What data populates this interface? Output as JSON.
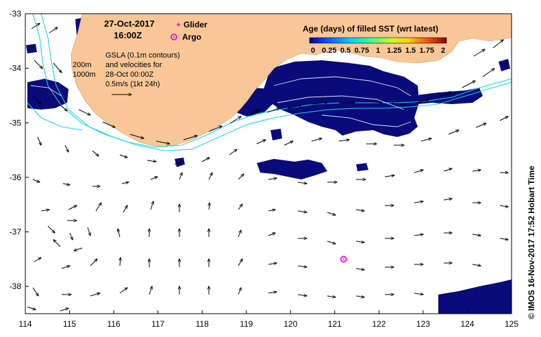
{
  "map": {
    "date": "27-Oct-2017",
    "time": "16:00Z",
    "legend_glider": "Glider",
    "legend_argo": "Argo",
    "gsla_lines": [
      "GSLA (0.1m contours)",
      "and velocities for",
      "28-Oct 00:00Z",
      "0.5m/s (1kt 24h)"
    ],
    "depth_200": "200m",
    "depth_1000": "1000m",
    "colorbar_title": "Age (days) of filled SST (wrt latest)",
    "colorbar_ticks": [
      "0",
      "0.25",
      "0.5",
      "0.75",
      "1",
      "1.25",
      "1.5",
      "1.75",
      "2"
    ],
    "credit": "© IMOS 16-Nov-2017 17:52 Hobart Time",
    "x_ticks": [
      "114",
      "115",
      "116",
      "117",
      "118",
      "119",
      "120",
      "121",
      "122",
      "123",
      "124",
      "125"
    ],
    "y_ticks": [
      "-33",
      "-34",
      "-35",
      "-36",
      "-37",
      "-38"
    ],
    "lon_range": [
      114,
      125
    ],
    "lat_range": [
      -38.5,
      -33
    ],
    "argo": {
      "lon": 121.2,
      "lat": -37.5
    },
    "colors": {
      "land": "#f9c797",
      "sst": "#0a0a7a",
      "isobath": "#18d4e8",
      "argo": "#e020e0",
      "ocean": "#ffffff"
    }
  }
}
